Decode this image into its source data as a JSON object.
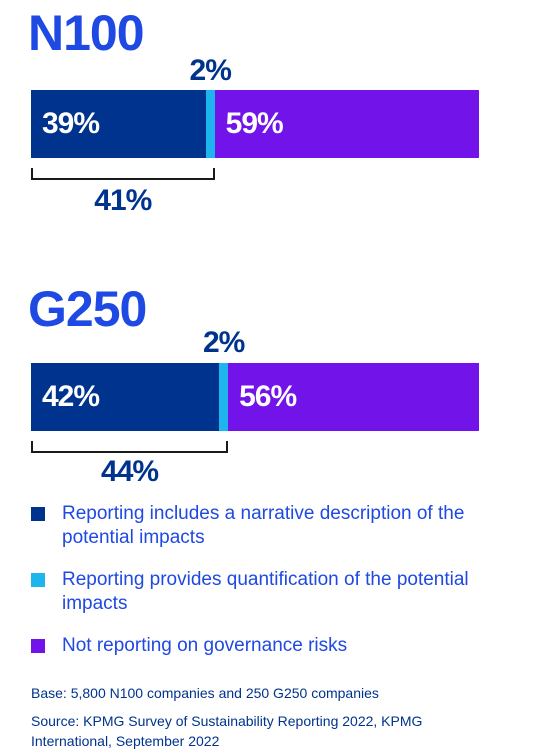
{
  "chart_data": [
    {
      "type": "bar",
      "title": "N100",
      "segments": [
        {
          "series": "Reporting includes a narrative description of the potential impacts",
          "value": 39,
          "label": "39%"
        },
        {
          "series": "Reporting provides quantification of the potential impacts",
          "value": 2,
          "label": "2%"
        },
        {
          "series": "Not reporting on governance risks",
          "value": 59,
          "label": "59%"
        }
      ],
      "bracket": {
        "value": 41,
        "label": "41%"
      }
    },
    {
      "type": "bar",
      "title": "G250",
      "segments": [
        {
          "series": "Reporting includes a narrative description of the potential impacts",
          "value": 42,
          "label": "42%"
        },
        {
          "series": "Reporting provides quantification of the potential impacts",
          "value": 2,
          "label": "2%"
        },
        {
          "series": "Not reporting on governance risks",
          "value": 56,
          "label": "56%"
        }
      ],
      "bracket": {
        "value": 44,
        "label": "44%"
      }
    }
  ],
  "legend": [
    {
      "label": "Reporting includes a narrative description of the potential impacts",
      "color": "#00338D"
    },
    {
      "label": "Reporting provides quantification of the potential impacts",
      "color": "#1EB4EE"
    },
    {
      "label": "Not reporting on governance risks",
      "color": "#7213EA"
    }
  ],
  "footnotes": {
    "base": "Base: 5,800 N100 companies and 250 G250 companies",
    "source": "Source: KPMG Survey of Sustainability Reporting 2022, KPMG International, September 2022"
  }
}
